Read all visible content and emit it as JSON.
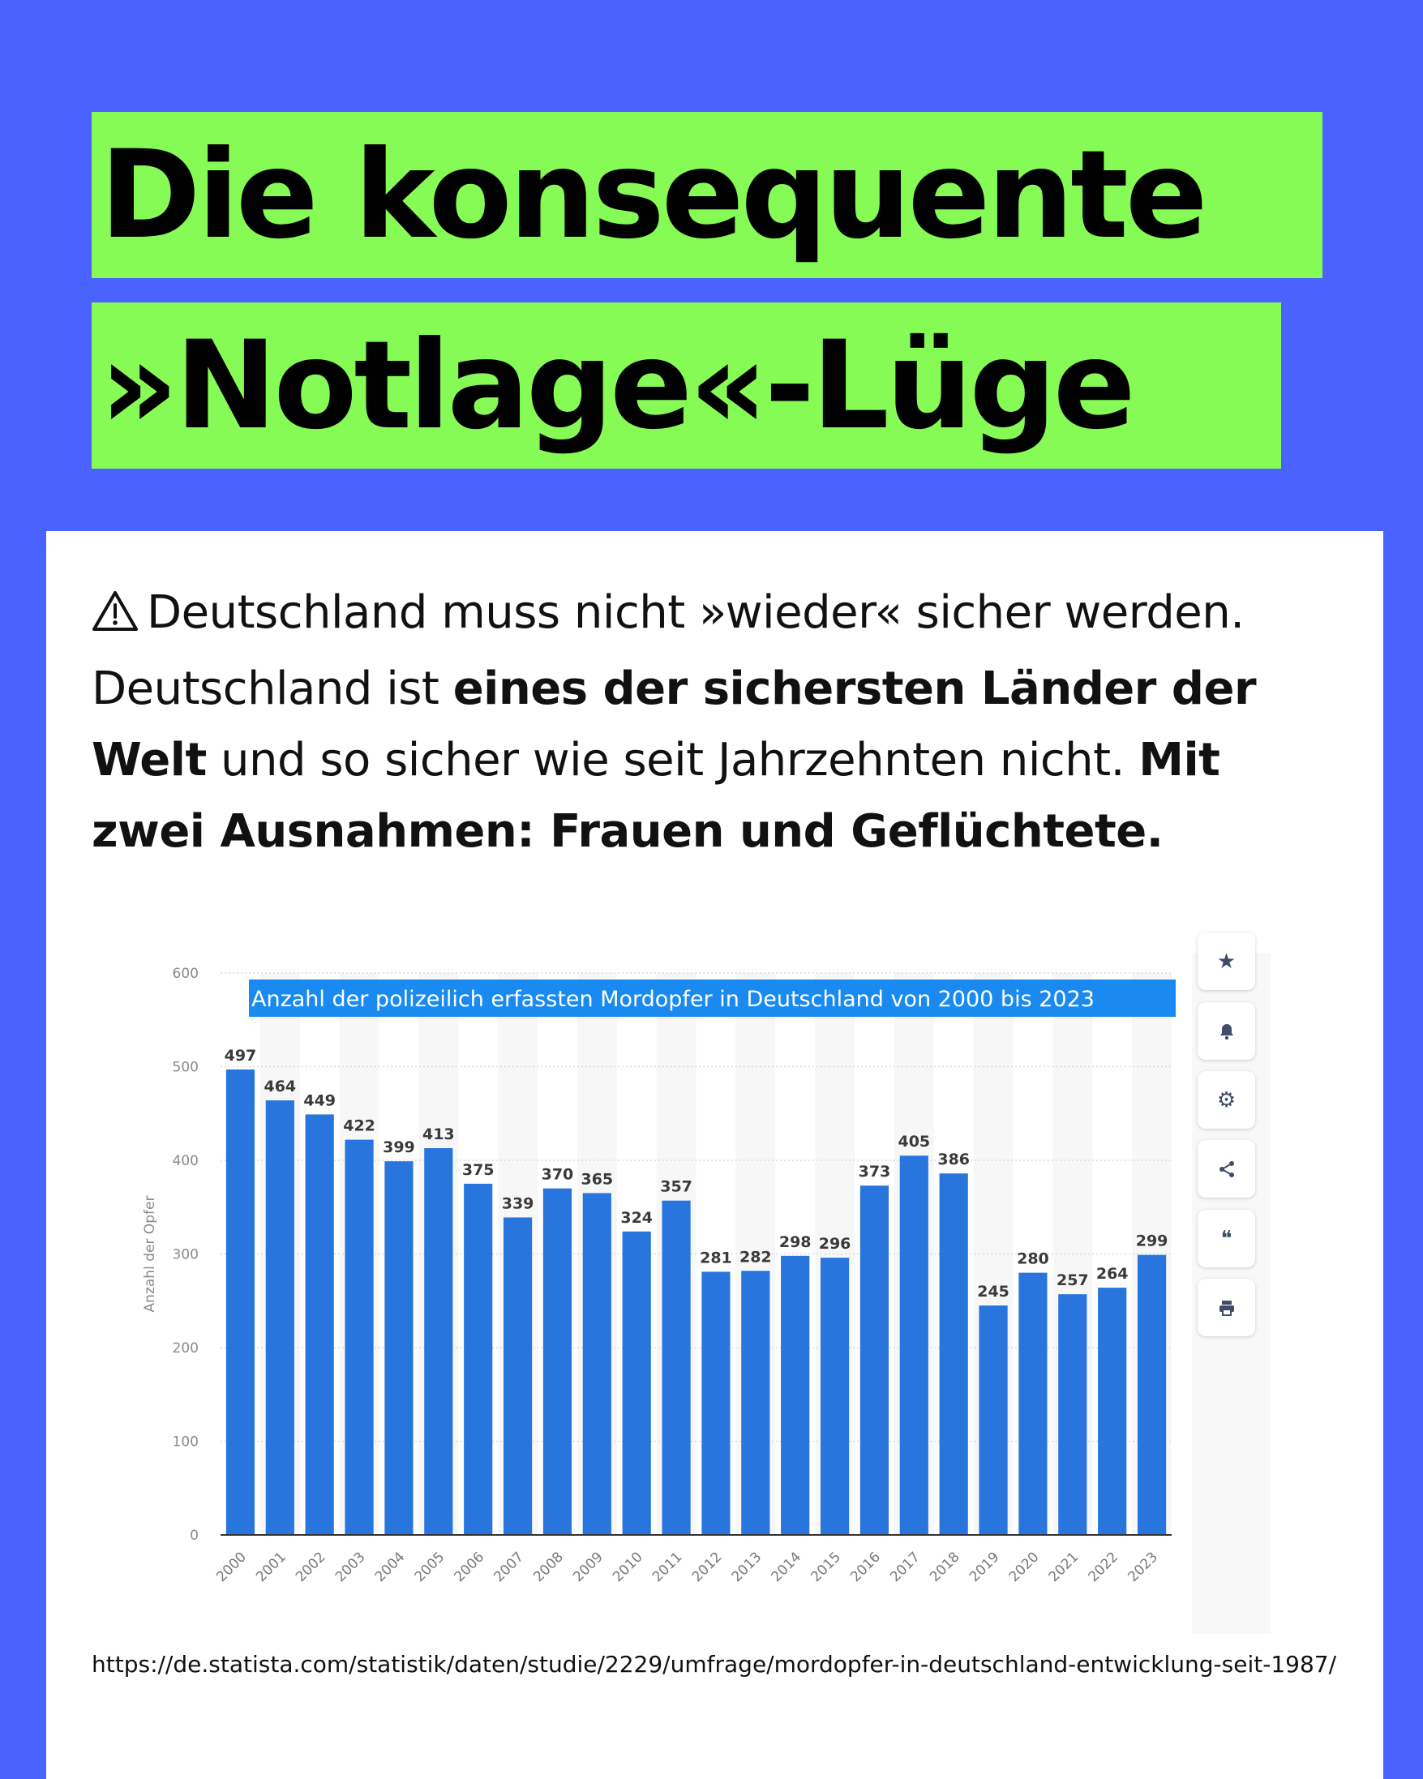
{
  "headline": {
    "line1": "Die konsequente",
    "line2": "»Notlage«-Lüge"
  },
  "intro": {
    "warning_icon": "warning-triangle-icon",
    "t1": "Deutschland muss nicht »wieder« sicher werden. Deutschland ist ",
    "b1": "eines der sichersten Länder der Welt",
    "t2": " und so sicher wie seit Jahrzehnten nicht. ",
    "b2": "Mit zwei Ausnahmen: Frauen und Geflüchtete."
  },
  "toolbar": {
    "icons": [
      "star-icon",
      "bell-icon",
      "gear-icon",
      "share-icon",
      "quote-icon",
      "print-icon"
    ]
  },
  "source_url": "https://de.statista.com/statistik/daten/studie/2229/umfrage/mordopfer-in-deutschland-entwicklung-seit-1987/",
  "colors": {
    "background": "#4a62ff",
    "highlight": "#86fb56",
    "bar": "#2876dd",
    "title_bg": "#1a8af0"
  },
  "chart_data": {
    "type": "bar",
    "title": "Anzahl der polizeilich erfassten Mordopfer in Deutschland von 2000 bis 2023",
    "ylabel": "Anzahl der Opfer",
    "xlabel": "",
    "ylim": [
      0,
      600
    ],
    "yticks": [
      0,
      100,
      200,
      300,
      400,
      500,
      600
    ],
    "grid": true,
    "categories": [
      "2000",
      "2001",
      "2002",
      "2003",
      "2004",
      "2005",
      "2006",
      "2007",
      "2008",
      "2009",
      "2010",
      "2011",
      "2012",
      "2013",
      "2014",
      "2015",
      "2016",
      "2017",
      "2018",
      "2019",
      "2020",
      "2021",
      "2022",
      "2023"
    ],
    "values": [
      497,
      464,
      449,
      422,
      399,
      413,
      375,
      339,
      370,
      365,
      324,
      357,
      281,
      282,
      298,
      296,
      373,
      405,
      386,
      245,
      280,
      257,
      264,
      299
    ]
  }
}
